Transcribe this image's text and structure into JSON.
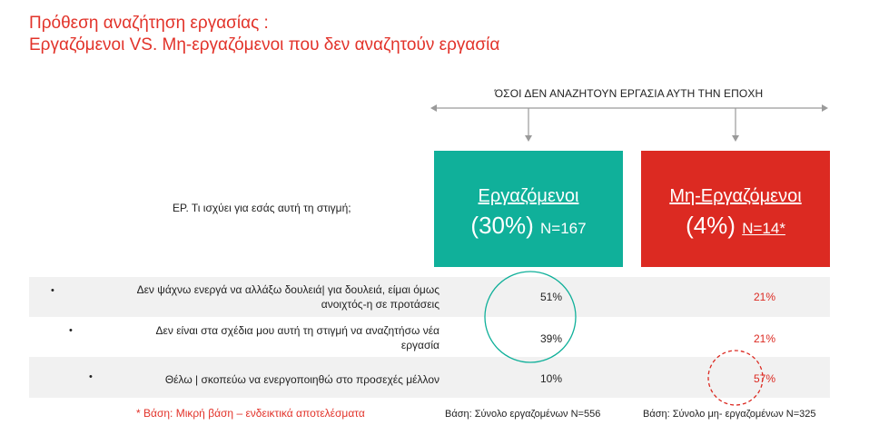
{
  "title": {
    "line1": "Πρόθεση αναζήτηση εργασίας :",
    "line2": "Εργαζόμενοι VS. Μη-εργαζόμενοι που δεν αναζητούν εργασία"
  },
  "top_label": "ΌΣΟΙ ΔΕΝ ΑΝΑΖΗΤΟΥΝ ΕΡΓΑΣΙΑ ΑΥΤΗ ΤΗΝ ΕΠΟΧΗ",
  "question": "ΕΡ. Τι ισχύει για εσάς αυτή τη στιγμή;",
  "colors": {
    "accent_red": "#dc2a22",
    "accent_green": "#10b09a",
    "shade": "#f1f1f1"
  },
  "chart_data": {
    "type": "table",
    "columns": [
      {
        "name": "Εργαζόμενοι",
        "share": "(30%)",
        "n": "N=167",
        "color": "#10b09a"
      },
      {
        "name": "Μη-Εργαζόμενοι",
        "share": "(4%)",
        "n": "N=14*",
        "color": "#dc2a22"
      }
    ],
    "rows": [
      {
        "label_line1": "Δεν ψάχνω ενεργά να αλλάξω δουλειά| για δουλειά, είμαι όμως",
        "label_line2": "ανοιχτός-η σε προτάσεις",
        "values": [
          "51%",
          "21%"
        ]
      },
      {
        "label_line1": "Δεν είναι στα σχέδια μου αυτή τη στιγμή να αναζητήσω νέα",
        "label_line2": "εργασία",
        "values": [
          "39%",
          "21%"
        ]
      },
      {
        "label_line1": "Θέλω | σκοπεύω να ενεργοποιηθώ στο προσεχές μέλλον",
        "label_line2": "",
        "values": [
          "10%",
          "57%"
        ]
      }
    ]
  },
  "footer": {
    "note": "* Βάση: Μικρή βάση – ενδεικτικά αποτελέσματα",
    "base_employed": "Βάση: Σύνολο εργαζομένων N=556",
    "base_unemployed": "Βάση: Σύνολο μη- εργαζομένων N=325"
  }
}
